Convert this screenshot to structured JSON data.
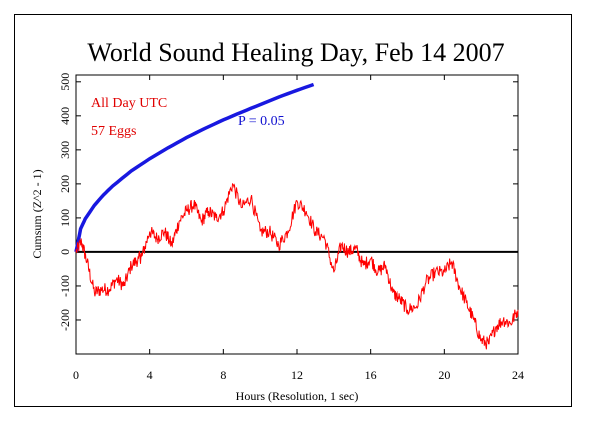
{
  "chart_data": {
    "type": "line",
    "title": "World Sound Healing Day, Feb 14 2007",
    "xlabel": "Hours (Resolution, 1 sec)",
    "ylabel": "Cumsum (Z^2 - 1)",
    "xlim": [
      0,
      24
    ],
    "ylim": [
      -300,
      520
    ],
    "x_ticks": [
      "0",
      "4",
      "8",
      "12",
      "16",
      "20",
      "24"
    ],
    "y_ticks": [
      "-200",
      "-100",
      "0",
      "100",
      "200",
      "300",
      "400",
      "500"
    ],
    "y_tick_values": [
      -200,
      -100,
      0,
      100,
      200,
      300,
      400,
      500
    ],
    "x_tick_values": [
      0,
      4,
      8,
      12,
      16,
      20,
      24
    ],
    "annotations": {
      "period": "All Day UTC",
      "eggs": "57 Eggs",
      "p_label": "P = 0.05"
    },
    "colors": {
      "cumsum": "#ff0000",
      "p_curve": "#1818e0",
      "zero_line": "#000000",
      "annotation_red": "#e00000",
      "annotation_blue": "#1010d0"
    },
    "series": [
      {
        "key": "cumsum",
        "x": [
          0,
          0.3,
          0.6,
          1.0,
          1.4,
          1.8,
          2.2,
          2.6,
          3.0,
          3.4,
          3.6,
          4.0,
          4.4,
          4.8,
          5.2,
          5.6,
          6.0,
          6.4,
          6.8,
          7.2,
          7.6,
          8.0,
          8.5,
          9.0,
          9.5,
          10.0,
          10.5,
          11.0,
          11.5,
          12.0,
          12.5,
          13.0,
          13.5,
          14.0,
          14.4,
          14.8,
          15.2,
          15.6,
          16.0,
          16.4,
          16.8,
          17.2,
          17.6,
          18.0,
          18.5,
          19.0,
          19.5,
          20.0,
          20.4,
          20.8,
          21.2,
          21.6,
          22.0,
          22.4,
          22.8,
          23.2,
          23.6,
          24.0
        ],
        "y": [
          0,
          30,
          -30,
          -120,
          -110,
          -110,
          -80,
          -100,
          -40,
          -20,
          -10,
          60,
          40,
          60,
          20,
          90,
          120,
          140,
          90,
          120,
          100,
          120,
          200,
          130,
          160,
          60,
          60,
          20,
          60,
          150,
          120,
          60,
          40,
          -60,
          20,
          0,
          10,
          -40,
          -20,
          -60,
          -40,
          -120,
          -140,
          -170,
          -160,
          -90,
          -60,
          -60,
          -30,
          -100,
          -150,
          -200,
          -260,
          -270,
          -220,
          -200,
          -210,
          -170
        ]
      },
      {
        "key": "p_curve",
        "x": [
          0,
          0.25,
          0.5,
          1,
          1.5,
          2,
          3,
          4,
          5,
          6,
          7,
          8,
          9,
          10,
          11,
          12,
          12.9
        ],
        "y": [
          0,
          68,
          97,
          137,
          168,
          194,
          238,
          274,
          306,
          336,
          363,
          388,
          411,
          433,
          455,
          475,
          492
        ]
      }
    ]
  }
}
